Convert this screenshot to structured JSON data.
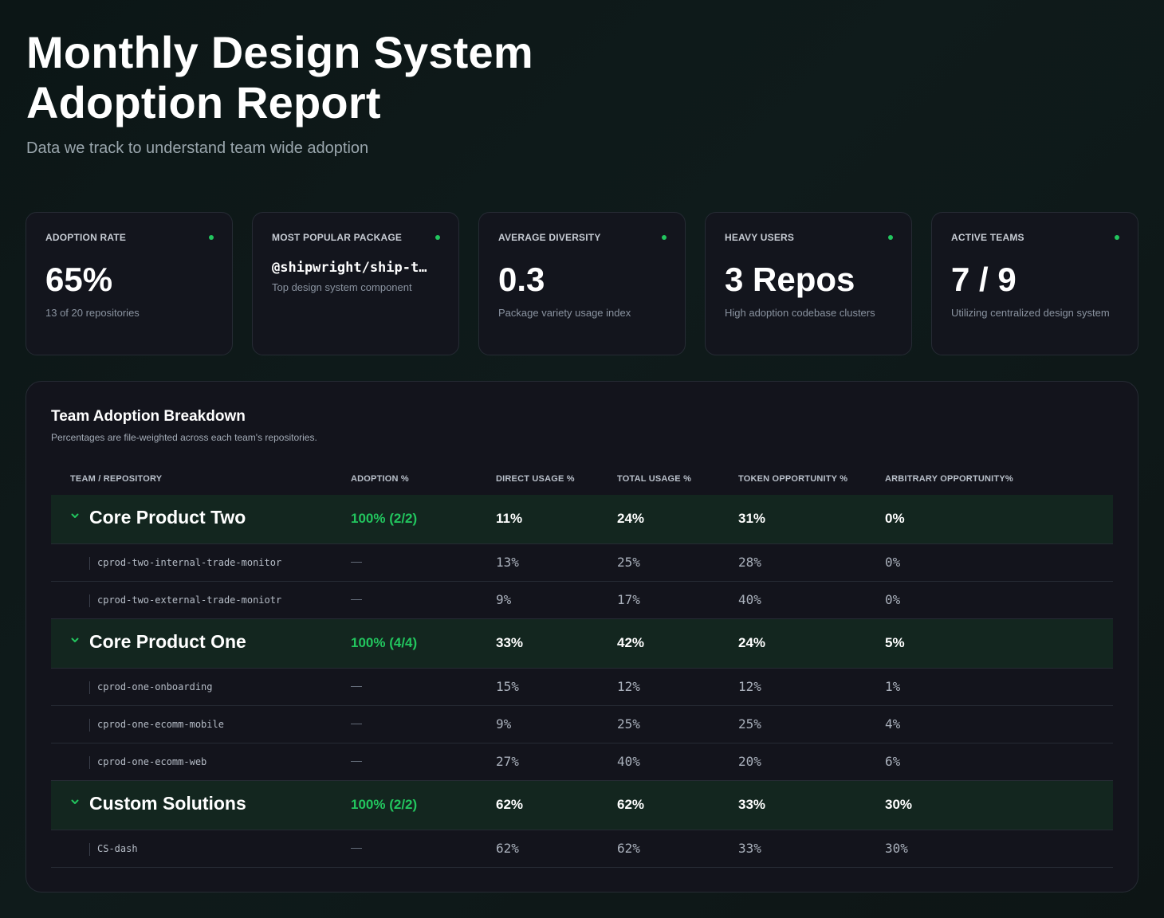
{
  "header": {
    "title": "Monthly Design System Adoption Report",
    "subtitle": "Data we track to understand team wide adoption"
  },
  "kpis": [
    {
      "label": "Adoption Rate",
      "value": "65%",
      "sub": "13 of 20 repositories",
      "status_color": "#22c55e"
    },
    {
      "label": "Most Popular Package",
      "value": "@shipwright/ship-t…",
      "sub": "Top design system component",
      "status_color": "#22c55e"
    },
    {
      "label": "Average Diversity",
      "value": "0.3",
      "sub": "Package variety usage index",
      "status_color": "#22c55e"
    },
    {
      "label": "Heavy Users",
      "value": "3 Repos",
      "sub": "High adoption codebase clusters",
      "status_color": "#22c55e"
    },
    {
      "label": "Active Teams",
      "value": "7 / 9",
      "sub": "Utilizing centralized design system",
      "status_color": "#22c55e"
    }
  ],
  "breakdown": {
    "title": "Team Adoption Breakdown",
    "subtitle": "Percentages are file-weighted across each team's repositories.",
    "columns": [
      "Team / Repository",
      "Adoption %",
      "Direct Usage %",
      "Total Usage %",
      "Token Opportunity %",
      "Arbitrary Opportunity%"
    ],
    "teams": [
      {
        "name": "Core Product Two",
        "adoption": "100% (2/2)",
        "direct": "11%",
        "total": "24%",
        "token": "31%",
        "arbitrary": "0%",
        "repos": [
          {
            "name": "cprod-two-internal-trade-monitor",
            "adoption": "—",
            "direct": "13%",
            "total": "25%",
            "token": "28%",
            "arbitrary": "0%"
          },
          {
            "name": "cprod-two-external-trade-moniotr",
            "adoption": "—",
            "direct": "9%",
            "total": "17%",
            "token": "40%",
            "arbitrary": "0%"
          }
        ]
      },
      {
        "name": "Core Product One",
        "adoption": "100% (4/4)",
        "direct": "33%",
        "total": "42%",
        "token": "24%",
        "arbitrary": "5%",
        "repos": [
          {
            "name": "cprod-one-onboarding",
            "adoption": "—",
            "direct": "15%",
            "total": "12%",
            "token": "12%",
            "arbitrary": "1%"
          },
          {
            "name": "cprod-one-ecomm-mobile",
            "adoption": "—",
            "direct": "9%",
            "total": "25%",
            "token": "25%",
            "arbitrary": "4%"
          },
          {
            "name": "cprod-one-ecomm-web",
            "adoption": "—",
            "direct": "27%",
            "total": "40%",
            "token": "20%",
            "arbitrary": "6%"
          }
        ]
      },
      {
        "name": "Custom Solutions",
        "adoption": "100% (2/2)",
        "direct": "62%",
        "total": "62%",
        "token": "33%",
        "arbitrary": "30%",
        "repos": [
          {
            "name": "CS-dash",
            "adoption": "—",
            "direct": "62%",
            "total": "62%",
            "token": "33%",
            "arbitrary": "30%"
          }
        ]
      }
    ]
  },
  "colors": {
    "accent_green": "#22c55e",
    "team_row_bg": "#13261f",
    "card_bg": "#13151d",
    "page_bg": "#0f1b1b"
  },
  "icons": {
    "status": "status-dot-icon",
    "expand": "chevron-down-icon",
    "tree": "tree-line-icon"
  }
}
